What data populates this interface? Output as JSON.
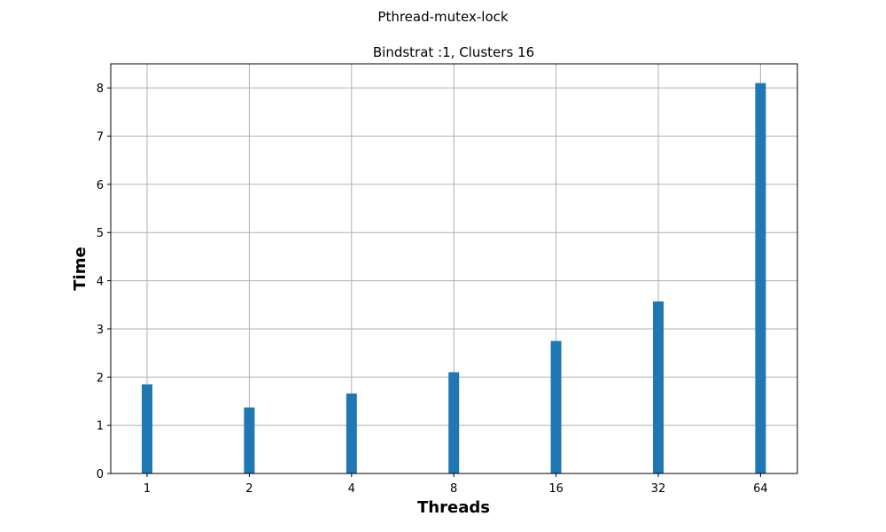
{
  "suptitle": "Pthread-mutex-lock",
  "chart_data": {
    "type": "bar",
    "title": "Bindstrat :1, Clusters 16",
    "xlabel": "Threads",
    "ylabel": "Time",
    "categories": [
      "1",
      "2",
      "4",
      "8",
      "16",
      "32",
      "64"
    ],
    "values": [
      1.85,
      1.37,
      1.66,
      2.1,
      2.75,
      3.57,
      8.1
    ],
    "ylim": [
      0,
      8.5
    ],
    "yticks": [
      0,
      1,
      2,
      3,
      4,
      5,
      6,
      7,
      8
    ],
    "grid": true,
    "bar_color": "#1f77b4"
  }
}
